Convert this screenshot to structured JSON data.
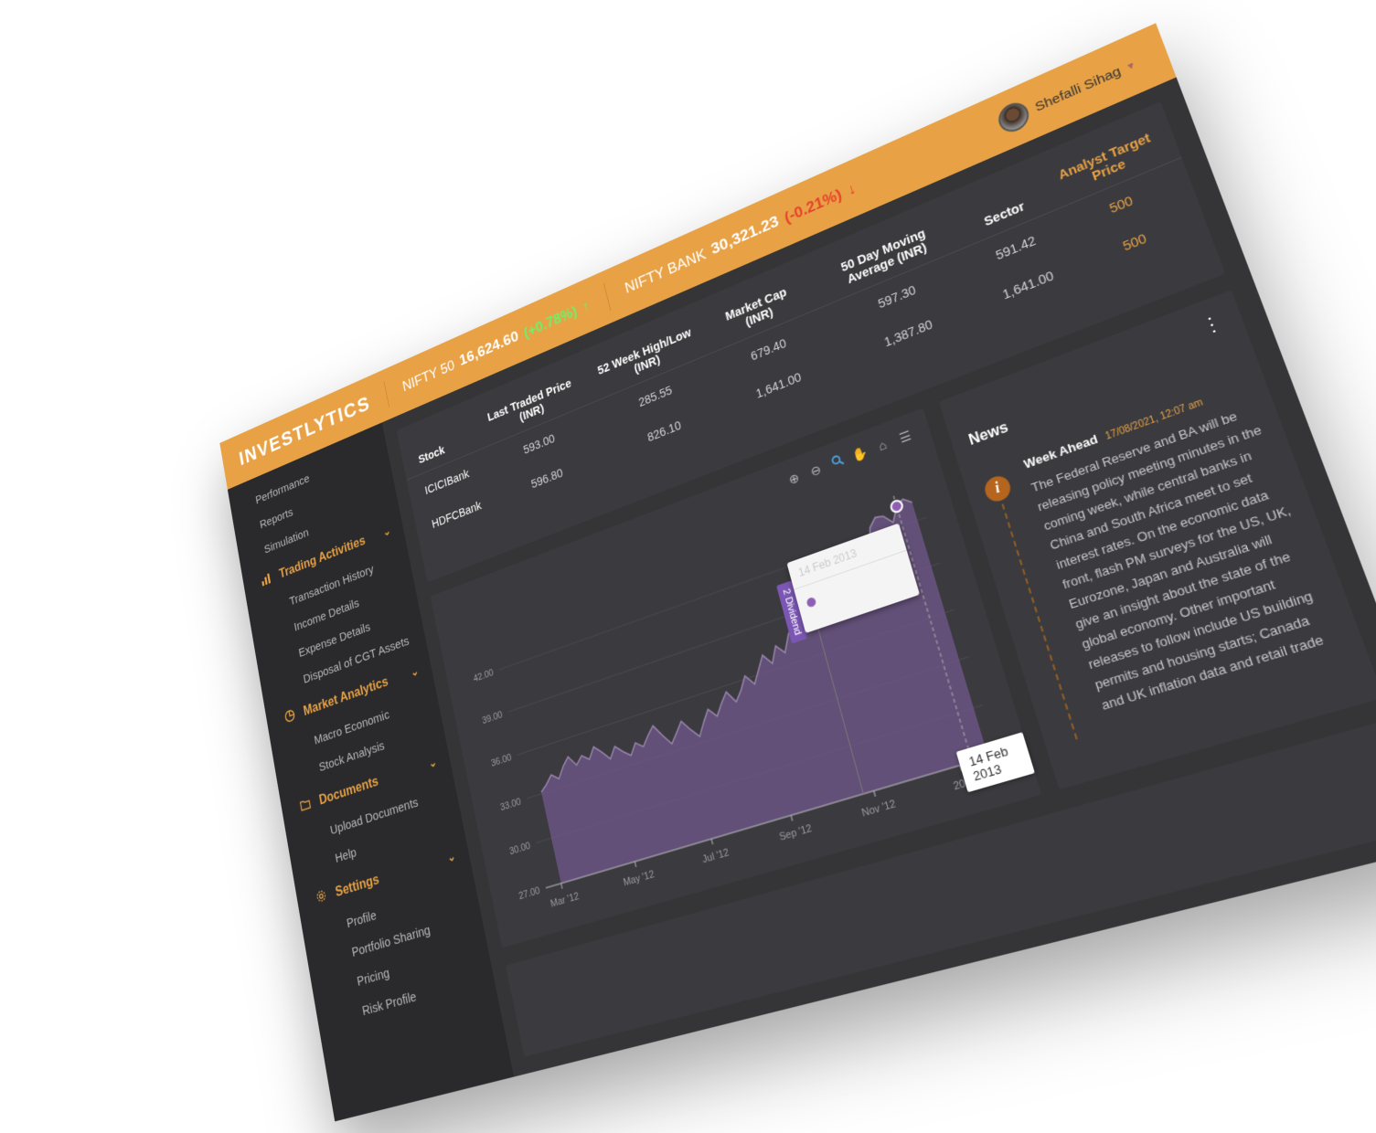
{
  "brand": {
    "logo": "INVESTLYTICS"
  },
  "tickers": [
    {
      "name": "NIFTY 50",
      "value": "16,624.60",
      "change": "(+0.78%)",
      "arrow": "↑",
      "direction": "up"
    },
    {
      "name": "NIFTY BANK",
      "value": "30,321.23",
      "change": "(-0.21%)",
      "arrow": "↓",
      "direction": "down"
    }
  ],
  "user": {
    "name": "Shefalli Sihag"
  },
  "sidebar": {
    "top_items": [
      "Performance",
      "Reports",
      "Simulation"
    ],
    "groups": [
      {
        "label": "Trading Activities",
        "icon": "bar-chart-icon",
        "items": [
          "Transaction History",
          "Income Details",
          "Expense Details",
          "Disposal of CGT Assets"
        ]
      },
      {
        "label": "Market Analytics",
        "icon": "pie-chart-icon",
        "items": [
          "Macro Economic",
          "Stock Analysis"
        ]
      },
      {
        "label": "Documents",
        "icon": "folder-icon",
        "items": [
          "Upload Documents",
          "Help"
        ]
      },
      {
        "label": "Settings",
        "icon": "gear-icon",
        "items": [
          "Profile",
          "Portfolio Sharing",
          "Pricing",
          "Risk Profile"
        ]
      }
    ]
  },
  "stock_table": {
    "headers": [
      "Stock",
      "Last Traded Price (INR)",
      "52 Week High/Low (INR)",
      "Market Cap (INR)",
      "50 Day Moving Average (INR)",
      "Sector",
      "Analyst Target Price"
    ],
    "rows": [
      [
        "ICICIBank",
        "593.00",
        "285.55",
        "679.40",
        "597.30",
        "591.42",
        "500"
      ],
      [
        "HDFCBank",
        "596.80",
        "826.10",
        "1,641.00",
        "1,387.80",
        "1,641.00",
        "500"
      ]
    ]
  },
  "chart_toolbar": [
    "zoom-in-icon",
    "zoom-out-icon",
    "magnify-icon",
    "pan-hand-icon",
    "home-icon",
    "menu-icon"
  ],
  "chart_data": {
    "type": "area",
    "x_ticks": [
      "Mar '12",
      "May '12",
      "Jul '12",
      "Sep '12",
      "Nov '12",
      "2013"
    ],
    "y_ticks": [
      "27.00",
      "30.00",
      "33.00",
      "36.00",
      "39.00",
      "42.00"
    ],
    "ylim": [
      27,
      44
    ],
    "series": [
      {
        "values": [
          33.1,
          33.5,
          34.0,
          33.6,
          34.3,
          34.8,
          34.1,
          34.6,
          34.2,
          34.9,
          34.4,
          33.8,
          34.5,
          34.0,
          33.6,
          34.3,
          33.9,
          34.5,
          35.0,
          34.2,
          33.5,
          34.1,
          34.7,
          34.0,
          33.4,
          34.2,
          34.9,
          34.3,
          35.0,
          35.6,
          34.8,
          35.4,
          36.2,
          35.5,
          36.3,
          37.1,
          36.4,
          37.4,
          36.8,
          37.8,
          38.5,
          37.6,
          38.8,
          39.5,
          38.6,
          39.2,
          38.4,
          39.6,
          40.4,
          39.1,
          38.2,
          39.0,
          41.0,
          42.6,
          43.1,
          43.0,
          42.4,
          43.3,
          43.6,
          43.2
        ]
      }
    ],
    "annotations": {
      "flag": "2 Dividend",
      "tooltip_date": "14 Feb 2013",
      "crosshair_label": "14 Feb 2013"
    },
    "colors": {
      "fill": "#6b5582",
      "line": "#9a86ad",
      "marker": "#8e5fb3"
    }
  },
  "news": {
    "title": "News",
    "more_icon": "more-vertical-icon",
    "item": {
      "headline": "Week Ahead",
      "time": "17/08/2021, 12:07 am",
      "icon": "info-icon",
      "body": "The Federal Reserve and BA will be releasing policy meeting minutes in the coming week, while central banks in China and South Africa meet to set interest rates. On the economic data front, flash PM surveys for the US, UK, Eurozone, Japan and Australia will give an insight about the state of the global economy. Other important releases to follow include US building permits and housing starts; Canada and UK inflation data and retail trade"
    }
  },
  "colors": {
    "accent": "#e8a245",
    "background": "#2f2f32",
    "up": "#6ef06a",
    "down": "#e5432d"
  }
}
